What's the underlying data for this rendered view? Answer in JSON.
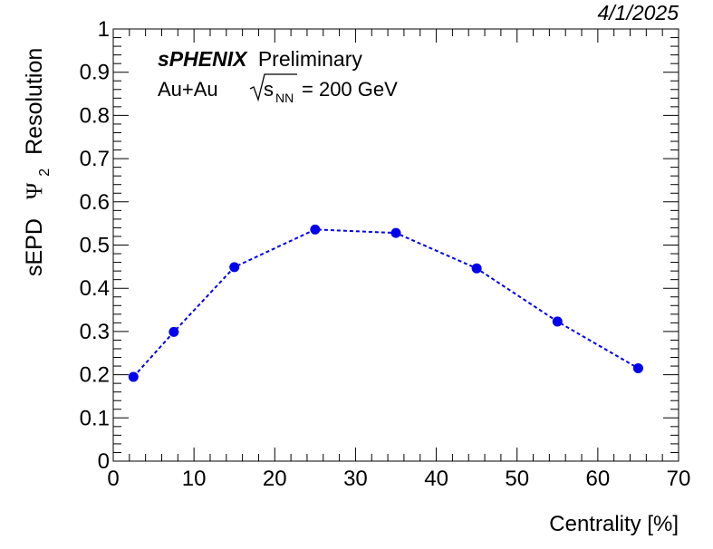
{
  "date_label": "4/1/2025",
  "annotation": {
    "experiment": "sPHENIX",
    "status": "Preliminary",
    "system": "Au+Au",
    "energy_symbol": "s",
    "energy_subscript": "NN",
    "energy_value": "= 200 GeV"
  },
  "chart_data": {
    "type": "line",
    "xlabel": "Centrality [%]",
    "ylabel": {
      "prefix": "sEPD",
      "symbol": "Ψ",
      "subscript": "2",
      "suffix": "Resolution"
    },
    "xlim": [
      0,
      70
    ],
    "ylim": [
      0,
      1
    ],
    "x_ticks": [
      0,
      10,
      20,
      30,
      40,
      50,
      60,
      70
    ],
    "y_ticks": [
      0,
      0.1,
      0.2,
      0.3,
      0.4,
      0.5,
      0.6,
      0.7,
      0.8,
      0.9,
      1
    ],
    "grid": false,
    "line_style": "dashed",
    "color": "#0000ee",
    "series": [
      {
        "x": [
          2.5,
          7.5,
          15,
          25,
          35,
          45,
          55,
          65
        ],
        "y": [
          0.195,
          0.299,
          0.449,
          0.536,
          0.528,
          0.446,
          0.323,
          0.215
        ]
      }
    ]
  }
}
